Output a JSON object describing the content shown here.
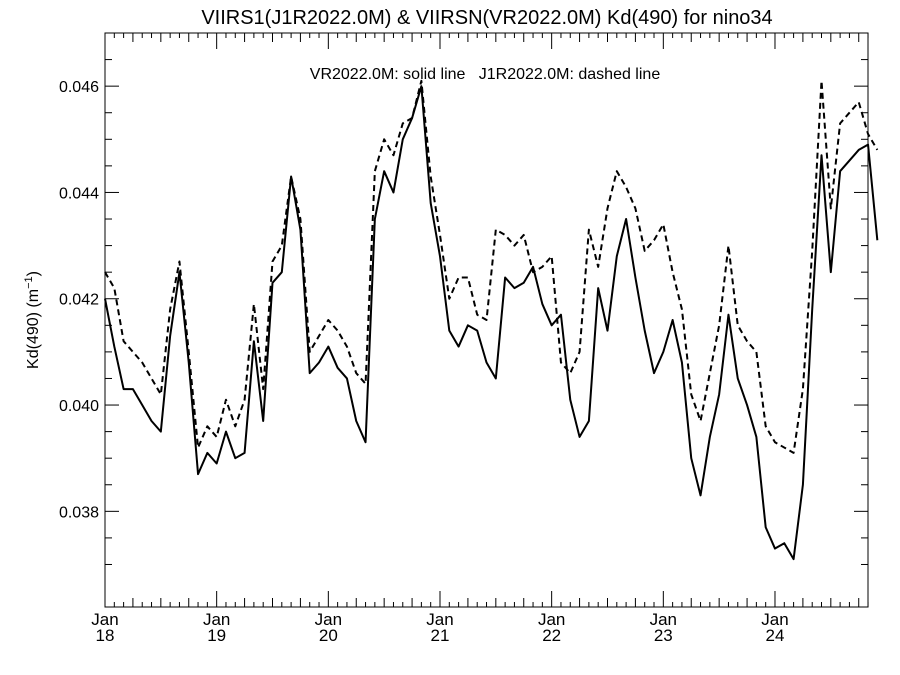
{
  "chart_data": {
    "type": "line",
    "title": "VIIRS1(J1R2022.0M) & VIIRSN(VR2022.0M)  Kd(490) for nino34",
    "ylabel_main": "Kd(490) (m",
    "ylabel_sup": "−1",
    "ylabel_close": ")",
    "annotation": "VR2022.0M: solid line   J1R2022.0M: dashed line",
    "xlim": [
      2018.0,
      2024.833
    ],
    "ylim": [
      0.0362,
      0.047
    ],
    "x_ticks": [
      {
        "x": 2018,
        "month": "Jan",
        "year": "18"
      },
      {
        "x": 2019,
        "month": "Jan",
        "year": "19"
      },
      {
        "x": 2020,
        "month": "Jan",
        "year": "20"
      },
      {
        "x": 2021,
        "month": "Jan",
        "year": "21"
      },
      {
        "x": 2022,
        "month": "Jan",
        "year": "22"
      },
      {
        "x": 2023,
        "month": "Jan",
        "year": "23"
      },
      {
        "x": 2024,
        "month": "Jan",
        "year": "24"
      }
    ],
    "y_ticks": [
      {
        "value": 0.038,
        "label": "0.038"
      },
      {
        "value": 0.04,
        "label": "0.040"
      },
      {
        "value": 0.042,
        "label": "0.042"
      },
      {
        "value": 0.044,
        "label": "0.044"
      },
      {
        "value": 0.046,
        "label": "0.046"
      }
    ],
    "grid": false,
    "series": [
      {
        "name": "VR2022.0M",
        "style": "solid",
        "color": "#000000",
        "values": [
          0.042,
          0.0411,
          0.0403,
          0.0403,
          0.04,
          0.0397,
          0.0395,
          0.0413,
          0.0425,
          0.0408,
          0.0387,
          0.0391,
          0.0389,
          0.0395,
          0.039,
          0.0391,
          0.0412,
          0.0397,
          0.0423,
          0.0425,
          0.0443,
          0.0433,
          0.0406,
          0.0408,
          0.0411,
          0.0407,
          0.0405,
          0.0397,
          0.0393,
          0.0435,
          0.0444,
          0.044,
          0.045,
          0.0454,
          0.046,
          0.0438,
          0.0428,
          0.0414,
          0.0411,
          0.0415,
          0.0414,
          0.0408,
          0.0405,
          0.0424,
          0.0422,
          0.0423,
          0.0426,
          0.0419,
          0.0415,
          0.0417,
          0.0401,
          0.0394,
          0.0397,
          0.0422,
          0.0414,
          0.0428,
          0.0435,
          0.0424,
          0.0414,
          0.0406,
          0.041,
          0.0416,
          0.0408,
          0.039,
          0.0383,
          0.0394,
          0.0402,
          0.0417,
          0.0405,
          0.04,
          0.0394,
          0.0377,
          0.0373,
          0.0374,
          0.0371,
          0.0385,
          0.0418,
          0.0447,
          0.0425,
          0.0444,
          0.0446,
          0.0448,
          0.0449,
          0.0431
        ]
      },
      {
        "name": "J1R2022.0M",
        "style": "dashed",
        "color": "#000000",
        "values": [
          0.0425,
          0.0422,
          0.0412,
          0.041,
          0.0408,
          0.0405,
          0.0402,
          0.0418,
          0.0427,
          0.041,
          0.0392,
          0.0396,
          0.0394,
          0.0401,
          0.0396,
          0.0401,
          0.0419,
          0.0403,
          0.0427,
          0.043,
          0.0443,
          0.0435,
          0.041,
          0.0413,
          0.0416,
          0.0414,
          0.0411,
          0.0406,
          0.0404,
          0.0444,
          0.045,
          0.0447,
          0.0453,
          0.0454,
          0.0461,
          0.0443,
          0.0432,
          0.042,
          0.0424,
          0.0424,
          0.0417,
          0.0416,
          0.0433,
          0.0432,
          0.043,
          0.0432,
          0.0425,
          0.0426,
          0.0428,
          0.0408,
          0.0406,
          0.041,
          0.0433,
          0.0426,
          0.0437,
          0.0444,
          0.0441,
          0.0437,
          0.0429,
          0.0431,
          0.0434,
          0.0425,
          0.0418,
          0.0402,
          0.0397,
          0.0406,
          0.0415,
          0.043,
          0.0415,
          0.0412,
          0.041,
          0.0396,
          0.0393,
          0.0392,
          0.0391,
          0.0403,
          0.0429,
          0.0461,
          0.0437,
          0.0453,
          0.0455,
          0.0457,
          0.0451,
          0.0448
        ]
      }
    ]
  }
}
